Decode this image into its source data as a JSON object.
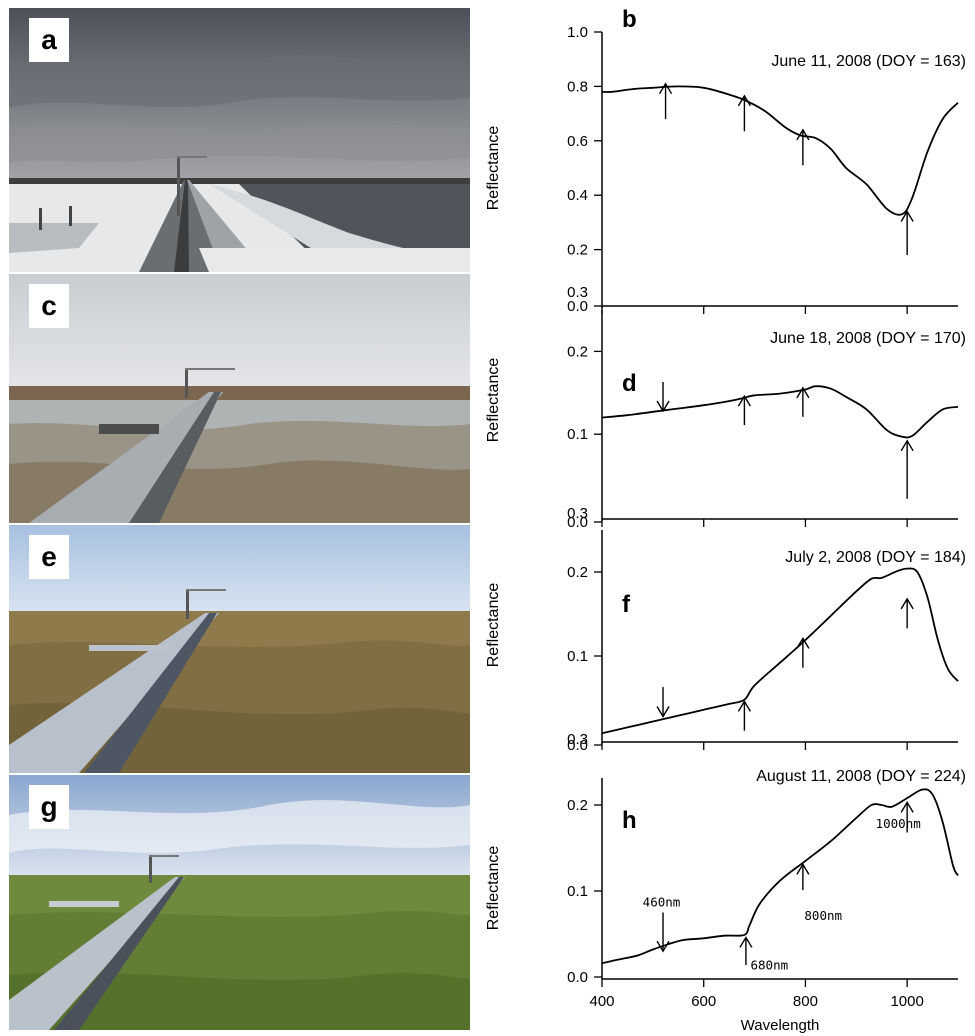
{
  "photos": [
    {
      "label": "a",
      "scene": "snow"
    },
    {
      "label": "c",
      "scene": "melt"
    },
    {
      "label": "e",
      "scene": "green"
    },
    {
      "label": "g",
      "scene": "lush"
    }
  ],
  "colors": {
    "line": "#000000",
    "axis": "#000000"
  },
  "chart_data": [
    {
      "type": "line",
      "label": "b",
      "title": "June 11, 2008 (DOY = 163)",
      "ylabel": "Reflectance",
      "xlabel": "",
      "xlim": [
        400,
        1100
      ],
      "ylim": [
        0.0,
        1.0
      ],
      "yticks": [
        1.0,
        0.8,
        0.6,
        0.4,
        0.2,
        0.0
      ],
      "ytick_labels": [
        "1.0",
        "0.8",
        "0.6",
        "0.4",
        "0.2",
        "0.0"
      ],
      "extra_tick_label": "0.3",
      "x": [
        400,
        420,
        460,
        500,
        550,
        600,
        650,
        680,
        720,
        760,
        790,
        820,
        850,
        880,
        920,
        960,
        990,
        1010,
        1040,
        1070,
        1100
      ],
      "y": [
        0.78,
        0.78,
        0.79,
        0.795,
        0.8,
        0.795,
        0.77,
        0.75,
        0.71,
        0.65,
        0.62,
        0.61,
        0.57,
        0.5,
        0.44,
        0.35,
        0.33,
        0.39,
        0.56,
        0.68,
        0.74
      ],
      "arrows": [
        {
          "x": 525,
          "dir": "up",
          "at": 0.81,
          "len": 0.13
        },
        {
          "x": 680,
          "dir": "up",
          "at": 0.765,
          "len": 0.13
        },
        {
          "x": 795,
          "dir": "up",
          "at": 0.64,
          "len": 0.13
        },
        {
          "x": 1000,
          "dir": "up",
          "at": 0.34,
          "len": 0.16
        }
      ],
      "annotations": []
    },
    {
      "type": "line",
      "label": "d",
      "title": "June 18, 2008 (DOY = 170)",
      "ylabel": "Reflectance",
      "xlabel": "",
      "xlim": [
        400,
        1100
      ],
      "ylim": [
        0.0,
        0.25
      ],
      "yticks": [
        0.2,
        0.1,
        0.0
      ],
      "ytick_labels": [
        "0.2",
        "0.1",
        "0.0"
      ],
      "extra_tick_label": "0.3",
      "x": [
        400,
        450,
        500,
        550,
        600,
        650,
        680,
        700,
        750,
        800,
        820,
        850,
        880,
        920,
        960,
        990,
        1010,
        1040,
        1070,
        1100
      ],
      "y": [
        0.12,
        0.123,
        0.127,
        0.131,
        0.135,
        0.14,
        0.144,
        0.147,
        0.149,
        0.154,
        0.158,
        0.155,
        0.145,
        0.13,
        0.105,
        0.097,
        0.098,
        0.115,
        0.13,
        0.133
      ],
      "arrows": [
        {
          "x": 520,
          "dir": "down",
          "at": 0.128,
          "len": 0.035
        },
        {
          "x": 680,
          "dir": "up",
          "at": 0.146,
          "len": 0.035
        },
        {
          "x": 795,
          "dir": "up",
          "at": 0.156,
          "len": 0.035
        },
        {
          "x": 1000,
          "dir": "up",
          "at": 0.092,
          "len": 0.07
        }
      ],
      "annotations": []
    },
    {
      "type": "line",
      "label": "f",
      "title": "July 2, 2008 (DOY = 184)",
      "ylabel": "Reflectance",
      "xlabel": "",
      "xlim": [
        400,
        1100
      ],
      "ylim": [
        0.0,
        0.25
      ],
      "yticks": [
        0.2,
        0.1,
        0.0
      ],
      "ytick_labels": [
        "0.2",
        "0.1",
        "0.0"
      ],
      "extra_tick_label": "0.3",
      "x": [
        400,
        450,
        500,
        550,
        600,
        650,
        680,
        700,
        750,
        800,
        850,
        900,
        930,
        950,
        980,
        1000,
        1020,
        1040,
        1060,
        1080,
        1100
      ],
      "y": [
        0.008,
        0.015,
        0.022,
        0.029,
        0.036,
        0.043,
        0.048,
        0.065,
        0.092,
        0.119,
        0.148,
        0.177,
        0.192,
        0.193,
        0.201,
        0.204,
        0.2,
        0.17,
        0.12,
        0.085,
        0.07
      ],
      "arrows": [
        {
          "x": 520,
          "dir": "down",
          "at": 0.028,
          "len": 0.035
        },
        {
          "x": 680,
          "dir": "up",
          "at": 0.046,
          "len": 0.035
        },
        {
          "x": 795,
          "dir": "up",
          "at": 0.121,
          "len": 0.035
        },
        {
          "x": 1000,
          "dir": "up",
          "at": 0.168,
          "len": 0.035
        }
      ],
      "annotations": []
    },
    {
      "type": "line",
      "label": "h",
      "title": "August 11, 2008 (DOY = 224)",
      "ylabel": "Reflectance",
      "xlabel": "Wavelength",
      "xlim": [
        400,
        1100
      ],
      "ylim": [
        0.0,
        0.25
      ],
      "yticks": [
        0.2,
        0.1,
        0.0
      ],
      "ytick_labels": [
        "0.2",
        "0.1",
        "0.0"
      ],
      "xticks": [
        400,
        600,
        800,
        1000
      ],
      "xtick_labels": [
        "400",
        "600",
        "800",
        "1000"
      ],
      "x": [
        400,
        430,
        470,
        500,
        530,
        560,
        600,
        640,
        680,
        690,
        710,
        750,
        800,
        850,
        900,
        930,
        950,
        970,
        1000,
        1030,
        1050,
        1070,
        1090,
        1100
      ],
      "y": [
        0.016,
        0.02,
        0.025,
        0.032,
        0.038,
        0.043,
        0.045,
        0.048,
        0.049,
        0.06,
        0.085,
        0.112,
        0.135,
        0.158,
        0.185,
        0.2,
        0.2,
        0.198,
        0.208,
        0.218,
        0.212,
        0.18,
        0.13,
        0.118
      ],
      "arrows": [
        {
          "x": 520,
          "dir": "down",
          "at": 0.03,
          "len": 0.045
        },
        {
          "x": 683,
          "dir": "up",
          "at": 0.046,
          "len": 0.032
        },
        {
          "x": 795,
          "dir": "up",
          "at": 0.131,
          "len": 0.03
        },
        {
          "x": 1000,
          "dir": "up",
          "at": 0.203,
          "len": 0.035
        }
      ],
      "annotations": [
        {
          "text": "460nm",
          "x": 480,
          "y": 0.082
        },
        {
          "text": "680nm",
          "x": 692,
          "y": 0.009
        },
        {
          "text": "800nm",
          "x": 798,
          "y": 0.066
        },
        {
          "text": "1000nm",
          "x": 938,
          "y": 0.173
        }
      ]
    }
  ]
}
